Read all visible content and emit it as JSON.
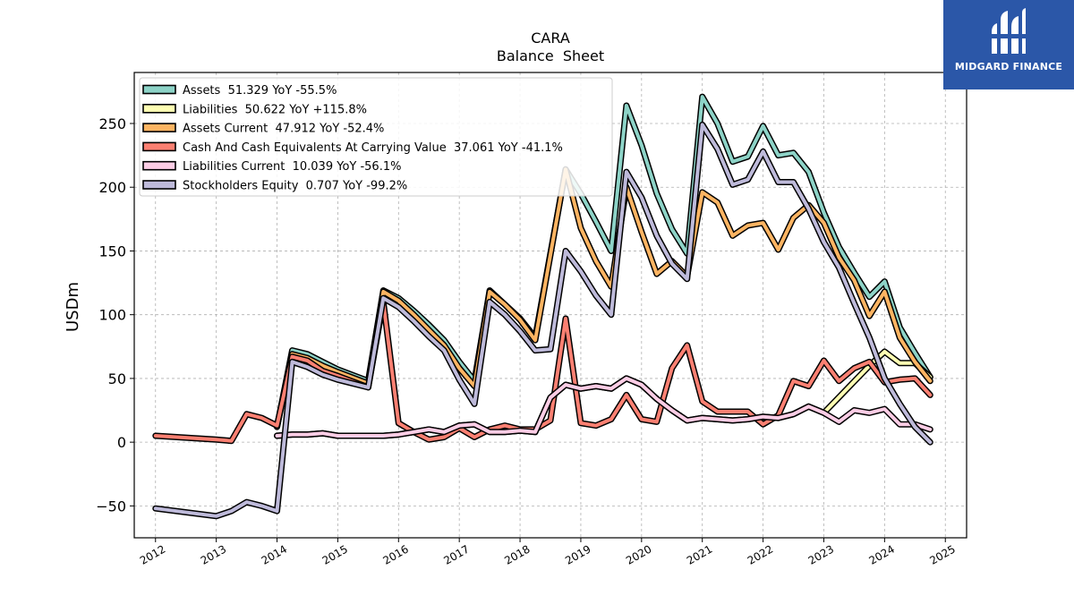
{
  "chart_data": {
    "type": "line",
    "title": "CARA",
    "subtitle": "Balance  Sheet",
    "ylabel": "USDm",
    "xlabel": "",
    "xlim": [
      2011.65,
      2025.35
    ],
    "ylim": [
      -75,
      290
    ],
    "x_ticks": [
      2012,
      2013,
      2014,
      2015,
      2016,
      2017,
      2018,
      2019,
      2020,
      2021,
      2022,
      2023,
      2024,
      2025
    ],
    "y_ticks": [
      -50,
      0,
      50,
      100,
      150,
      200,
      250
    ],
    "y_tick_labels": [
      "−50",
      "0",
      "50",
      "100",
      "150",
      "200",
      "250"
    ],
    "grid": true,
    "legend_position": "top-left",
    "series": [
      {
        "name": "Assets  51.329 YoY -55.5%",
        "color": "#8dd3c7",
        "x": [
          2014.0,
          2014.25,
          2014.5,
          2014.75,
          2015.0,
          2015.5,
          2015.75,
          2016.0,
          2016.25,
          2016.5,
          2016.75,
          2017.0,
          2017.25,
          2017.5,
          2017.75,
          2018.0,
          2018.25,
          2018.75,
          2019.0,
          2019.25,
          2019.5,
          2019.75,
          2020.0,
          2020.25,
          2020.5,
          2020.75,
          2021.0,
          2021.25,
          2021.5,
          2021.75,
          2022.0,
          2022.25,
          2022.5,
          2022.75,
          2023.0,
          2023.25,
          2023.5,
          2023.75,
          2024.0,
          2024.25,
          2024.5,
          2024.75
        ],
        "y": [
          12,
          72,
          69,
          63,
          57,
          48,
          119,
          113,
          103,
          92,
          80,
          63,
          48,
          119,
          108,
          97,
          82,
          214,
          195,
          173,
          150,
          264,
          233,
          195,
          167,
          148,
          271,
          250,
          220,
          224,
          248,
          225,
          227,
          212,
          180,
          153,
          133,
          114,
          126,
          90,
          70,
          51
        ]
      },
      {
        "name": "Liabilities  50.622 YoY +115.8%",
        "color": "#ffffb3",
        "x": [
          2014.0,
          2014.25,
          2014.5,
          2014.75,
          2015.0,
          2015.5,
          2015.75,
          2016.0,
          2016.25,
          2016.5,
          2016.75,
          2017.0,
          2017.25,
          2017.5,
          2017.75,
          2018.0,
          2018.25,
          2018.5,
          2018.75,
          2019.0,
          2019.25,
          2019.5,
          2019.75,
          2020.0,
          2020.25,
          2020.5,
          2020.75,
          2021.0,
          2021.25,
          2021.5,
          2021.75,
          2022.0,
          2022.25,
          2022.5,
          2022.75,
          2023.0,
          2023.75,
          2024.0,
          2024.25,
          2024.5,
          2024.75
        ],
        "y": [
          5,
          6,
          6,
          7,
          5,
          5,
          5,
          6,
          8,
          10,
          8,
          13,
          14,
          8,
          8,
          9,
          8,
          35,
          45,
          42,
          44,
          42,
          50,
          45,
          34,
          25,
          17,
          19,
          18,
          17,
          18,
          20,
          19,
          22,
          28,
          23,
          60,
          71,
          62,
          62,
          51
        ]
      },
      {
        "name": "Assets Current  47.912 YoY -52.4%",
        "color": "#fdb462",
        "x": [
          2014.0,
          2014.25,
          2014.5,
          2014.75,
          2015.0,
          2015.5,
          2015.75,
          2016.0,
          2016.25,
          2016.5,
          2016.75,
          2017.0,
          2017.25,
          2017.5,
          2017.75,
          2018.0,
          2018.25,
          2018.75,
          2019.0,
          2019.25,
          2019.5,
          2019.75,
          2020.0,
          2020.25,
          2020.5,
          2020.75,
          2021.0,
          2021.25,
          2021.5,
          2021.75,
          2022.0,
          2022.25,
          2022.5,
          2022.75,
          2023.0,
          2023.25,
          2023.5,
          2023.75,
          2024.0,
          2024.25,
          2024.5,
          2024.75
        ],
        "y": [
          12,
          69,
          66,
          60,
          55,
          46,
          118,
          111,
          100,
          88,
          76,
          58,
          44,
          118,
          108,
          96,
          80,
          214,
          168,
          142,
          122,
          200,
          165,
          132,
          142,
          130,
          196,
          188,
          162,
          170,
          172,
          151,
          176,
          186,
          172,
          145,
          127,
          99,
          118,
          82,
          63,
          48
        ]
      },
      {
        "name": "Cash And Cash Equivalents At Carrying Value  37.061 YoY -41.1%",
        "color": "#fb8072",
        "x": [
          2012.0,
          2013.0,
          2013.25,
          2013.5,
          2013.75,
          2014.0,
          2014.25,
          2014.5,
          2014.75,
          2015.0,
          2015.5,
          2015.75,
          2016.0,
          2016.25,
          2016.5,
          2016.75,
          2017.0,
          2017.25,
          2017.5,
          2017.75,
          2018.0,
          2018.25,
          2018.5,
          2018.75,
          2019.0,
          2019.25,
          2019.5,
          2019.75,
          2020.0,
          2020.25,
          2020.5,
          2020.75,
          2021.0,
          2021.25,
          2021.5,
          2021.75,
          2022.0,
          2022.25,
          2022.5,
          2022.75,
          2023.0,
          2023.25,
          2023.5,
          2023.75,
          2024.0,
          2024.25,
          2024.5,
          2024.75
        ],
        "y": [
          5,
          2,
          1,
          22,
          19,
          13,
          67,
          64,
          56,
          52,
          43,
          110,
          15,
          8,
          2,
          4,
          11,
          4,
          10,
          13,
          10,
          10,
          17,
          97,
          15,
          13,
          18,
          37,
          18,
          16,
          58,
          76,
          32,
          24,
          24,
          24,
          14,
          21,
          48,
          44,
          64,
          48,
          58,
          63,
          47,
          49,
          50,
          37
        ]
      },
      {
        "name": "Liabilities Current  10.039 YoY -56.1%",
        "color": "#fccde5",
        "x": [
          2014.0,
          2014.25,
          2014.5,
          2014.75,
          2015.0,
          2015.5,
          2015.75,
          2016.0,
          2016.25,
          2016.5,
          2016.75,
          2017.0,
          2017.25,
          2017.5,
          2017.75,
          2018.0,
          2018.25,
          2018.5,
          2018.75,
          2019.0,
          2019.25,
          2019.5,
          2019.75,
          2020.0,
          2020.25,
          2020.5,
          2020.75,
          2021.0,
          2021.25,
          2021.5,
          2021.75,
          2022.0,
          2022.25,
          2022.5,
          2022.75,
          2023.0,
          2023.25,
          2023.5,
          2023.75,
          2024.0,
          2024.25,
          2024.5,
          2024.75
        ],
        "y": [
          5,
          6,
          6,
          7,
          5,
          5,
          5,
          6,
          8,
          10,
          8,
          13,
          14,
          8,
          8,
          9,
          8,
          35,
          45,
          42,
          44,
          42,
          50,
          45,
          34,
          25,
          17,
          19,
          18,
          17,
          18,
          20,
          19,
          22,
          28,
          23,
          16,
          25,
          23,
          26,
          14,
          14,
          10
        ]
      },
      {
        "name": "Stockholders Equity  0.707 YoY -99.2%",
        "color": "#bebada",
        "x": [
          2012.0,
          2013.0,
          2013.25,
          2013.5,
          2013.75,
          2014.0,
          2014.25,
          2014.5,
          2014.75,
          2015.0,
          2015.5,
          2015.75,
          2016.0,
          2016.25,
          2016.5,
          2016.75,
          2017.0,
          2017.25,
          2017.5,
          2017.75,
          2018.0,
          2018.25,
          2018.5,
          2018.75,
          2019.0,
          2019.25,
          2019.5,
          2019.75,
          2020.0,
          2020.25,
          2020.5,
          2020.75,
          2021.0,
          2021.25,
          2021.5,
          2021.75,
          2022.0,
          2022.25,
          2022.5,
          2022.75,
          2023.0,
          2023.25,
          2023.5,
          2023.75,
          2024.0,
          2024.25,
          2024.5,
          2024.75
        ],
        "y": [
          -52,
          -58,
          -54,
          -47,
          -50,
          -54,
          63,
          59,
          53,
          49,
          43,
          113,
          106,
          95,
          83,
          72,
          49,
          30,
          110,
          100,
          87,
          72,
          73,
          150,
          134,
          115,
          100,
          212,
          192,
          162,
          140,
          128,
          249,
          230,
          202,
          206,
          228,
          204,
          204,
          183,
          157,
          137,
          109,
          82,
          50,
          30,
          12,
          0
        ]
      }
    ]
  },
  "logo": {
    "text": "MIDGARD FINANCE",
    "bg_color": "#2b57a8"
  }
}
